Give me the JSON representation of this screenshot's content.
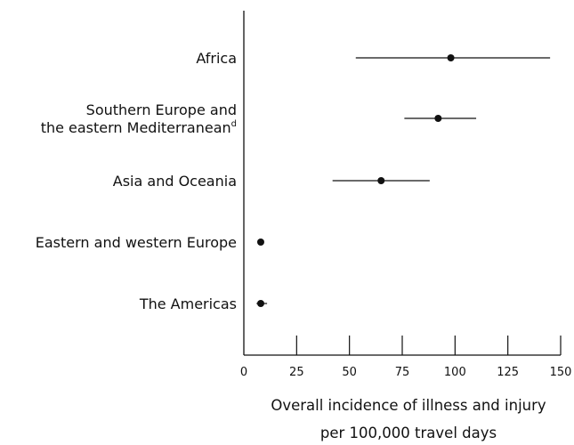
{
  "chart_data": {
    "type": "scatter",
    "orientation": "horizontal",
    "error_bars": true,
    "categories": [
      {
        "lines": [
          "Africa"
        ],
        "sup": ""
      },
      {
        "lines": [
          "Southern Europe and",
          "the eastern Mediterranean"
        ],
        "sup": "d"
      },
      {
        "lines": [
          "Asia and Oceania"
        ],
        "sup": ""
      },
      {
        "lines": [
          "Eastern and western Europe"
        ],
        "sup": ""
      },
      {
        "lines": [
          "The Americas"
        ],
        "sup": ""
      }
    ],
    "values": [
      98,
      92,
      65,
      8,
      8
    ],
    "lower": [
      53,
      76,
      42,
      8,
      6
    ],
    "upper": [
      145,
      110,
      88,
      8,
      11
    ],
    "xticks": [
      "0",
      "25",
      "50",
      "75",
      "100",
      "125",
      "150"
    ],
    "xlim": [
      0,
      150
    ],
    "xlabel_lines": [
      "Overall incidence of illness and injury",
      "per 100,000 travel days"
    ],
    "grid": false,
    "legend": "none"
  }
}
